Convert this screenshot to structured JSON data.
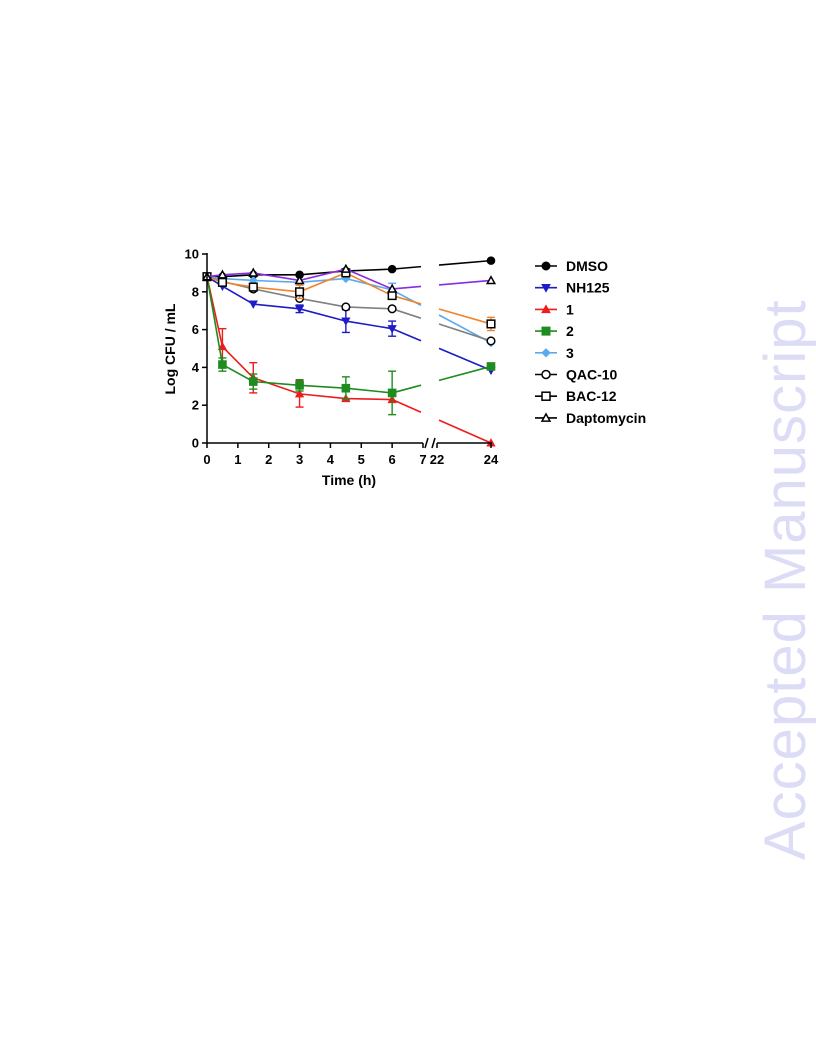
{
  "watermark": "Accepted Manuscript",
  "chart_data": {
    "type": "line",
    "xlabel": "Time (h)",
    "ylabel": "Log CFU / mL",
    "ylim": [
      0,
      10
    ],
    "yticks": [
      "0",
      "2",
      "4",
      "6",
      "8",
      "10"
    ],
    "xticks_left": [
      "0",
      "1",
      "2",
      "3",
      "4",
      "5",
      "6",
      "7"
    ],
    "xticks_right": [
      "22",
      "24"
    ],
    "x_axis_break": [
      7,
      22
    ],
    "xlim_left": [
      0,
      7
    ],
    "xlim_right": [
      22,
      24
    ],
    "legend_position": "right",
    "x": [
      0,
      0.5,
      1.5,
      3,
      4.5,
      6,
      24
    ],
    "series": [
      {
        "name": "DMSO",
        "color": "#000000",
        "marker": "circle-filled",
        "values": [
          8.8,
          8.8,
          8.9,
          8.9,
          9.1,
          9.2,
          9.65
        ],
        "errors": [
          0,
          0,
          0,
          0,
          0,
          0,
          0
        ]
      },
      {
        "name": "NH125",
        "color": "#1c1cc8",
        "marker": "triangle-down-filled",
        "values": [
          8.8,
          8.3,
          7.35,
          7.1,
          6.45,
          6.05,
          3.85
        ],
        "errors": [
          0,
          0,
          0,
          0.2,
          0.6,
          0.4,
          0
        ]
      },
      {
        "name": "1",
        "color": "#ee1c1c",
        "marker": "triangle-up-filled",
        "values": [
          8.8,
          5.1,
          3.45,
          2.6,
          2.35,
          2.3,
          0.0
        ],
        "errors": [
          0,
          0.95,
          0.8,
          0.7,
          0,
          0,
          0
        ]
      },
      {
        "name": "2",
        "color": "#1e8c1e",
        "marker": "square-filled",
        "values": [
          8.8,
          4.15,
          3.25,
          3.05,
          2.9,
          2.65,
          4.05
        ],
        "errors": [
          0,
          0.35,
          0.4,
          0.3,
          0.6,
          1.15,
          0
        ]
      },
      {
        "name": "3",
        "color": "#5aaaf0",
        "marker": "diamond-filled",
        "values": [
          8.8,
          8.7,
          8.6,
          8.5,
          8.7,
          8.1,
          5.3
        ],
        "errors": [
          0,
          0,
          0,
          0,
          0,
          0.35,
          0
        ]
      },
      {
        "name": "QAC-10",
        "color": "#808080",
        "marker": "circle-open",
        "values": [
          8.8,
          8.55,
          8.15,
          7.65,
          7.2,
          7.1,
          5.4
        ],
        "errors": [
          0,
          0,
          0,
          0,
          0,
          0,
          0
        ]
      },
      {
        "name": "BAC-12",
        "color": "#f0842a",
        "marker": "square-open",
        "values": [
          8.8,
          8.5,
          8.25,
          8.0,
          9.0,
          7.8,
          6.3
        ],
        "errors": [
          0,
          0,
          0,
          0.35,
          0,
          0,
          0.35
        ]
      },
      {
        "name": "Daptomycin",
        "color": "#8a2be2",
        "marker": "triangle-up-open",
        "values": [
          8.8,
          8.9,
          9.0,
          8.6,
          9.2,
          8.15,
          8.6
        ],
        "errors": [
          0,
          0,
          0,
          0,
          0,
          0,
          0
        ]
      }
    ]
  }
}
